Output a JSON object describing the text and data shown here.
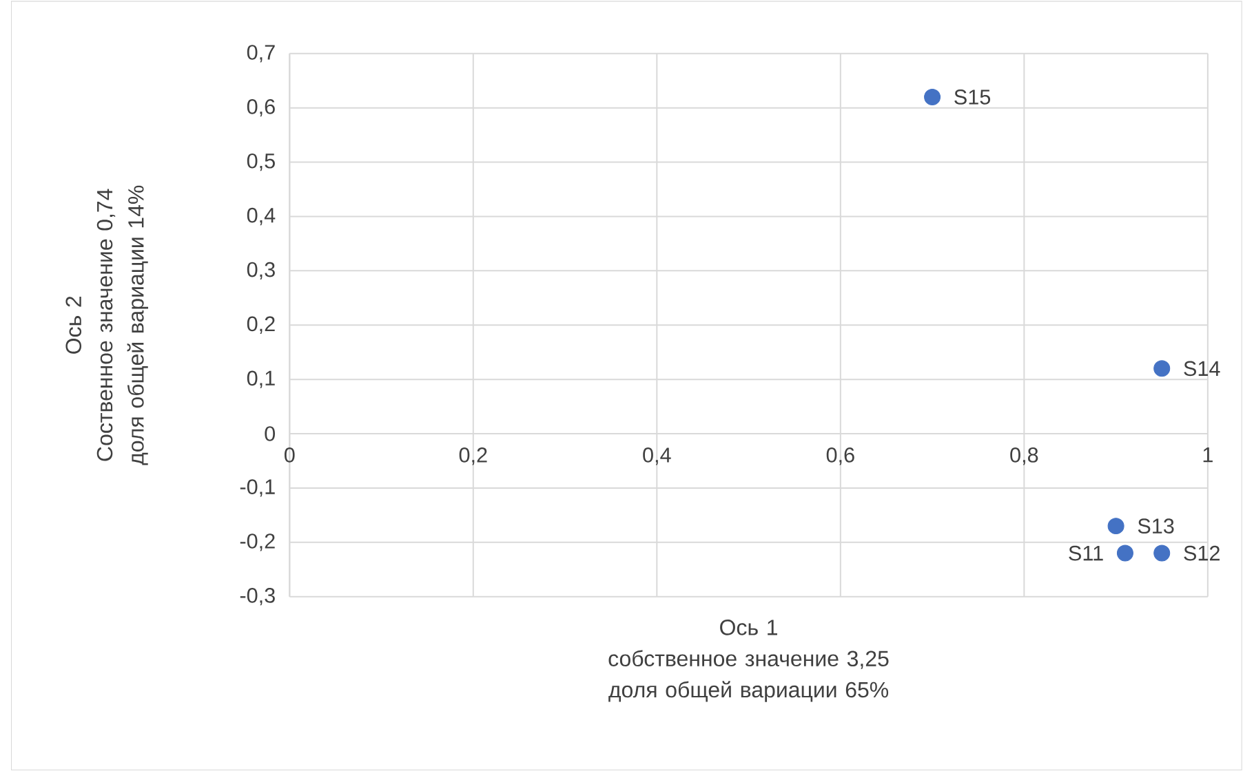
{
  "chart_data": {
    "type": "scatter",
    "xlabel": "Ось 1\nсобственное значение 3,25\nдоля общей вариации 65%",
    "ylabel": "Ось 2\nСоственное значение 0,74\nдоля общей вариации 14%",
    "series": [
      {
        "color": "#4472c4",
        "x": [
          0.91,
          0.95,
          0.9,
          0.95,
          0.7
        ],
        "values": [
          -0.22,
          -0.22,
          -0.17,
          0.12,
          0.62
        ],
        "value_labels": [
          "S11",
          "S12",
          "S13",
          "S14",
          "S15"
        ]
      }
    ],
    "xlim": [
      0,
      1
    ],
    "ylim": [
      -0.3,
      0.7
    ],
    "xticks": [
      0,
      {
        "value": 0.2,
        "label": "0,2"
      },
      {
        "value": 0.4,
        "label": "0,4"
      },
      {
        "value": 0.6,
        "label": "0,6"
      },
      {
        "value": 0.8,
        "label": "0,8"
      },
      1
    ],
    "yticks": [
      {
        "value": -0.3,
        "label": "-0,3"
      },
      {
        "value": -0.2,
        "label": "-0,2"
      },
      {
        "value": -0.1,
        "label": "-0,1"
      },
      0,
      {
        "value": 0.1,
        "label": "0,1"
      },
      {
        "value": 0.2,
        "label": "0,2"
      },
      {
        "value": 0.3,
        "label": "0,3"
      },
      {
        "value": 0.4,
        "label": "0,4"
      },
      {
        "value": 0.5,
        "label": "0,5"
      },
      {
        "value": 0.6,
        "label": "0,6"
      },
      {
        "value": 0.7,
        "label": "0,7"
      }
    ],
    "grid": true,
    "marker": "circle"
  }
}
